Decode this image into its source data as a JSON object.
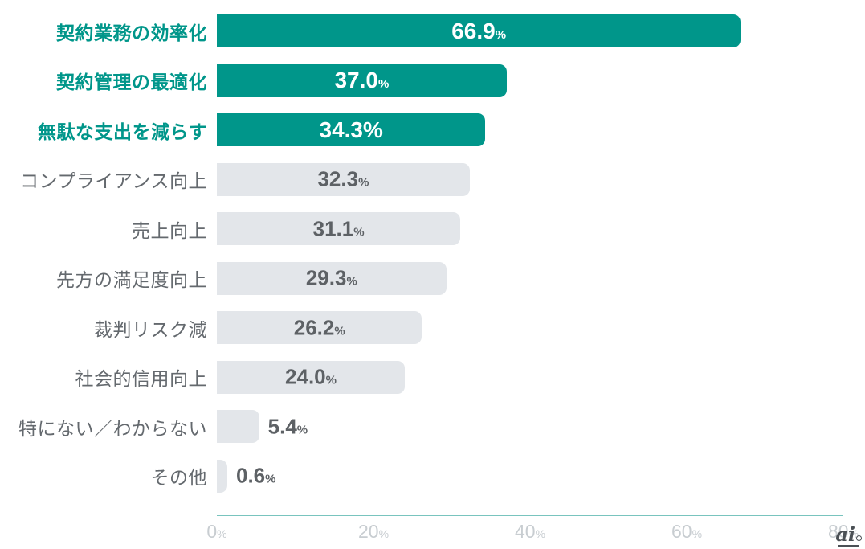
{
  "chart_data": {
    "type": "bar",
    "orientation": "horizontal",
    "title": "",
    "xlabel": "",
    "ylabel": "",
    "xlim": [
      0,
      80
    ],
    "grid": false,
    "legend": "none",
    "categories": [
      "契約業務の効率化",
      "契約管理の最適化",
      "無駄な支出を減らす",
      "コンプライアンス向上",
      "売上向上",
      "先方の満足度向上",
      "裁判リスク減",
      "社会的信用向上",
      "特にない／わからない",
      "その他"
    ],
    "values": [
      66.9,
      37.0,
      34.3,
      32.3,
      31.1,
      29.3,
      26.2,
      24.0,
      5.4,
      0.6
    ],
    "value_unit": "%",
    "x_tick_labels": [
      "0%",
      "20%",
      "40%",
      "60%",
      "80%"
    ],
    "highlighted_categories": [
      "契約業務の効率化",
      "契約管理の最適化",
      "無駄な支出を減らす"
    ],
    "bar_color_highlight": "#00968a",
    "bar_color_default": "#e3e6ea",
    "label_color_highlight": "#00968a",
    "label_color_default": "#64696e",
    "axis_line_color": "#79c4be"
  },
  "rows": [
    {
      "label": "契約業務の効率化",
      "value": 66.9,
      "display": "66.9",
      "unit": "%",
      "unit_small": true,
      "highlighted": true,
      "value_placement": "inside"
    },
    {
      "label": "契約管理の最適化",
      "value": 37.0,
      "display": "37.0",
      "unit": "%",
      "unit_small": true,
      "highlighted": true,
      "value_placement": "inside"
    },
    {
      "label": "無駄な支出を減らす",
      "value": 34.3,
      "display": "34.3",
      "unit": "%",
      "unit_small": false,
      "highlighted": true,
      "value_placement": "inside"
    },
    {
      "label": "コンプライアンス向上",
      "value": 32.3,
      "display": "32.3",
      "unit": "%",
      "unit_small": true,
      "highlighted": false,
      "value_placement": "inside"
    },
    {
      "label": "売上向上",
      "value": 31.1,
      "display": "31.1",
      "unit": "%",
      "unit_small": true,
      "highlighted": false,
      "value_placement": "inside"
    },
    {
      "label": "先方の満足度向上",
      "value": 29.3,
      "display": "29.3",
      "unit": "%",
      "unit_small": true,
      "highlighted": false,
      "value_placement": "inside"
    },
    {
      "label": "裁判リスク減",
      "value": 26.2,
      "display": "26.2",
      "unit": "%",
      "unit_small": true,
      "highlighted": false,
      "value_placement": "inside"
    },
    {
      "label": "社会的信用向上",
      "value": 24.0,
      "display": "24.0",
      "unit": "%",
      "unit_small": true,
      "highlighted": false,
      "value_placement": "inside"
    },
    {
      "label": "特にない／わからない",
      "value": 5.4,
      "display": "5.4",
      "unit": "%",
      "unit_small": true,
      "highlighted": false,
      "value_placement": "outside"
    },
    {
      "label": "その他",
      "value": 0.6,
      "display": "0.6",
      "unit": "%",
      "unit_small": true,
      "highlighted": false,
      "value_placement": "outside"
    }
  ],
  "axis": {
    "ticks": [
      {
        "value": 0,
        "label": "0",
        "unit": "%"
      },
      {
        "value": 20,
        "label": "20",
        "unit": "%"
      },
      {
        "value": 40,
        "label": "40",
        "unit": "%"
      },
      {
        "value": 60,
        "label": "60",
        "unit": "%"
      },
      {
        "value": 80,
        "label": "80",
        "unit": "%"
      }
    ]
  },
  "watermark": {
    "text": "ai"
  }
}
